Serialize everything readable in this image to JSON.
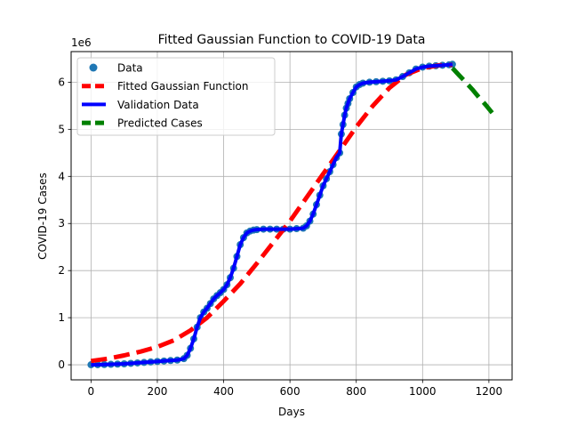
{
  "chart_data": {
    "type": "line",
    "title": "Fitted Gaussian Function to COVID-19 Data",
    "xlabel": "Days",
    "ylabel": "COVID-19 Cases",
    "y_offset_label": "1e6",
    "xlim": [
      -60,
      1270
    ],
    "ylim": [
      -0.32,
      6.65
    ],
    "xticks": [
      0,
      200,
      400,
      600,
      800,
      1000,
      1200
    ],
    "yticks": [
      0,
      1,
      2,
      3,
      4,
      5,
      6
    ],
    "grid": true,
    "legend_position": "upper-left",
    "series": [
      {
        "name": "Data",
        "kind": "scatter",
        "color": "#1f77b4",
        "x": [
          0,
          20,
          40,
          60,
          80,
          100,
          120,
          140,
          160,
          180,
          200,
          220,
          240,
          260,
          280,
          290,
          300,
          310,
          320,
          330,
          340,
          350,
          360,
          370,
          380,
          390,
          400,
          410,
          420,
          430,
          440,
          450,
          460,
          470,
          480,
          490,
          500,
          520,
          540,
          560,
          580,
          600,
          620,
          640,
          650,
          660,
          670,
          680,
          690,
          700,
          710,
          720,
          730,
          740,
          750,
          755,
          760,
          765,
          770,
          775,
          780,
          790,
          800,
          810,
          820,
          840,
          860,
          880,
          900,
          920,
          940,
          960,
          980,
          1000,
          1020,
          1040,
          1060,
          1080,
          1090
        ],
        "y": [
          0,
          0.002,
          0.005,
          0.01,
          0.015,
          0.02,
          0.03,
          0.04,
          0.05,
          0.06,
          0.07,
          0.08,
          0.09,
          0.1,
          0.13,
          0.2,
          0.35,
          0.55,
          0.8,
          1.0,
          1.12,
          1.2,
          1.3,
          1.4,
          1.47,
          1.53,
          1.6,
          1.7,
          1.85,
          2.05,
          2.3,
          2.55,
          2.7,
          2.8,
          2.84,
          2.86,
          2.87,
          2.88,
          2.88,
          2.88,
          2.88,
          2.88,
          2.89,
          2.9,
          2.95,
          3.05,
          3.2,
          3.4,
          3.6,
          3.8,
          3.95,
          4.1,
          4.25,
          4.4,
          4.5,
          4.9,
          5.1,
          5.3,
          5.45,
          5.55,
          5.65,
          5.78,
          5.9,
          5.95,
          5.98,
          6.0,
          6.01,
          6.02,
          6.03,
          6.05,
          6.12,
          6.2,
          6.28,
          6.32,
          6.34,
          6.35,
          6.36,
          6.37,
          6.38
        ]
      },
      {
        "name": "Fitted Gaussian Function",
        "kind": "line",
        "color": "#ff0000",
        "dash": "dashed",
        "x": [
          0,
          50,
          100,
          150,
          200,
          250,
          300,
          350,
          400,
          450,
          500,
          550,
          600,
          650,
          700,
          750,
          800,
          850,
          900,
          950,
          1000,
          1050,
          1090
        ],
        "y": [
          0.08,
          0.13,
          0.2,
          0.28,
          0.38,
          0.52,
          0.73,
          1.0,
          1.35,
          1.72,
          2.15,
          2.6,
          3.05,
          3.55,
          4.05,
          4.55,
          5.05,
          5.5,
          5.88,
          6.16,
          6.3,
          6.36,
          6.37
        ]
      },
      {
        "name": "Validation Data",
        "kind": "line",
        "color": "#0000ff",
        "dash": "solid",
        "x": [
          0,
          20,
          40,
          60,
          80,
          100,
          120,
          140,
          160,
          180,
          200,
          220,
          240,
          260,
          280,
          290,
          300,
          310,
          320,
          330,
          340,
          350,
          360,
          370,
          380,
          390,
          400,
          410,
          420,
          430,
          440,
          450,
          460,
          470,
          480,
          490,
          500,
          520,
          540,
          560,
          580,
          600,
          620,
          640,
          650,
          660,
          670,
          680,
          690,
          700,
          710,
          720,
          730,
          740,
          750,
          755,
          760,
          765,
          770,
          775,
          780,
          790,
          800,
          810,
          820,
          840,
          860,
          880,
          900,
          920,
          940,
          960,
          980,
          1000,
          1020,
          1040,
          1060,
          1080,
          1090
        ],
        "y": [
          0,
          0.002,
          0.005,
          0.01,
          0.015,
          0.02,
          0.03,
          0.04,
          0.05,
          0.06,
          0.07,
          0.08,
          0.09,
          0.1,
          0.13,
          0.2,
          0.35,
          0.55,
          0.8,
          1.0,
          1.12,
          1.2,
          1.3,
          1.4,
          1.47,
          1.53,
          1.6,
          1.7,
          1.85,
          2.05,
          2.3,
          2.55,
          2.7,
          2.8,
          2.84,
          2.86,
          2.87,
          2.88,
          2.88,
          2.88,
          2.88,
          2.88,
          2.89,
          2.9,
          2.95,
          3.05,
          3.2,
          3.4,
          3.6,
          3.8,
          3.95,
          4.1,
          4.25,
          4.4,
          4.5,
          4.9,
          5.1,
          5.3,
          5.45,
          5.55,
          5.65,
          5.78,
          5.9,
          5.95,
          5.98,
          6.0,
          6.01,
          6.02,
          6.03,
          6.05,
          6.12,
          6.2,
          6.28,
          6.32,
          6.34,
          6.35,
          6.36,
          6.37,
          6.38
        ]
      },
      {
        "name": "Predicted Cases",
        "kind": "line",
        "color": "#008000",
        "dash": "dashed",
        "x": [
          1090,
          1110,
          1130,
          1150,
          1170,
          1190,
          1210
        ],
        "y": [
          6.3,
          6.15,
          6.0,
          5.85,
          5.68,
          5.52,
          5.35
        ]
      }
    ]
  }
}
